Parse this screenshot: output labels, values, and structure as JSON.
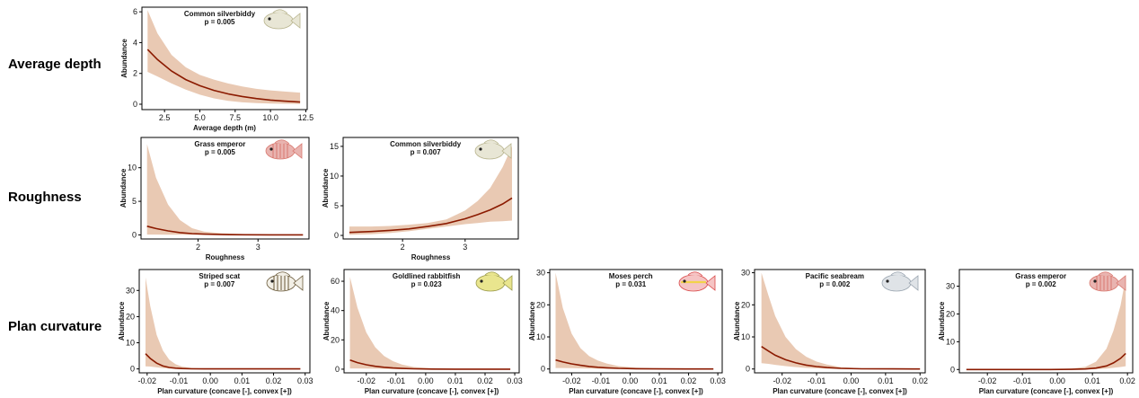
{
  "row_labels": [
    "Average depth",
    "Roughness",
    "Plan curvature"
  ],
  "colors": {
    "line": "#8b1a00",
    "ribbon": "#e9c9b3"
  },
  "chart_data": [
    {
      "type": "line",
      "row": 0,
      "species": "Common silverbiddy",
      "p_text": "p = 0.005",
      "xlabel": "Average depth (m)",
      "ylabel": "Abundance",
      "xlim": [
        0.9,
        12.6
      ],
      "ylim": [
        -0.35,
        6.3
      ],
      "xticks": [
        2.5,
        5.0,
        7.5,
        10.0,
        12.5
      ],
      "xtick_labels": [
        "2.5",
        "5.0",
        "7.5",
        "10.0",
        "12.5"
      ],
      "yticks": [
        0,
        2,
        4,
        6
      ],
      "ytick_labels": [
        "0",
        "2",
        "4",
        "6"
      ],
      "x": [
        1.3,
        2.0,
        3.0,
        4.0,
        5.0,
        6.0,
        7.0,
        8.0,
        9.0,
        10.0,
        11.0,
        12.1
      ],
      "y": [
        3.55,
        2.9,
        2.15,
        1.6,
        1.2,
        0.9,
        0.67,
        0.5,
        0.37,
        0.27,
        0.2,
        0.14
      ],
      "ci_low": [
        2.1,
        1.8,
        1.35,
        0.95,
        0.62,
        0.38,
        0.22,
        0.12,
        0.07,
        0.04,
        0.03,
        0.02
      ],
      "ci_high": [
        6.1,
        4.6,
        3.2,
        2.4,
        1.9,
        1.6,
        1.35,
        1.15,
        1.0,
        0.9,
        0.82,
        0.75
      ],
      "fish_icon": "silverbiddy-fish-icon"
    },
    {
      "type": "line",
      "row": 1,
      "species": "Grass emperor",
      "p_text": "p = 0.005",
      "xlabel": "Roughness",
      "ylabel": "Abundance",
      "xlim": [
        1.05,
        3.85
      ],
      "ylim": [
        -0.6,
        14.5
      ],
      "xticks": [
        2,
        3
      ],
      "xtick_labels": [
        "2",
        "3"
      ],
      "yticks": [
        0,
        5,
        10
      ],
      "ytick_labels": [
        "0",
        "5",
        "10"
      ],
      "x": [
        1.15,
        1.3,
        1.5,
        1.7,
        1.9,
        2.1,
        2.4,
        2.8,
        3.2,
        3.6,
        3.75
      ],
      "y": [
        1.3,
        0.95,
        0.6,
        0.35,
        0.2,
        0.12,
        0.06,
        0.03,
        0.02,
        0.01,
        0.01
      ],
      "ci_low": [
        0.05,
        0.05,
        0.04,
        0.03,
        0.02,
        0.01,
        0.0,
        0.0,
        0.0,
        0.0,
        0.0
      ],
      "ci_high": [
        13.5,
        8.5,
        4.5,
        2.2,
        1.0,
        0.5,
        0.25,
        0.12,
        0.08,
        0.05,
        0.04
      ],
      "fish_icon": "grass-emperor-fish-icon"
    },
    {
      "type": "line",
      "row": 1,
      "species": "Common silverbiddy",
      "p_text": "p = 0.007",
      "xlabel": "Roughness",
      "ylabel": "Abundance",
      "xlim": [
        1.05,
        3.85
      ],
      "ylim": [
        -0.6,
        16.5
      ],
      "xticks": [
        2,
        3
      ],
      "xtick_labels": [
        "2",
        "3"
      ],
      "yticks": [
        0,
        5,
        10,
        15
      ],
      "ytick_labels": [
        "0",
        "5",
        "10",
        "15"
      ],
      "x": [
        1.15,
        1.5,
        1.8,
        2.1,
        2.4,
        2.7,
        3.0,
        3.2,
        3.4,
        3.6,
        3.75
      ],
      "y": [
        0.5,
        0.65,
        0.85,
        1.1,
        1.5,
        2.0,
        2.8,
        3.5,
        4.3,
        5.3,
        6.3
      ],
      "ci_low": [
        0.1,
        0.2,
        0.4,
        0.7,
        1.1,
        1.5,
        1.9,
        2.1,
        2.3,
        2.4,
        2.5
      ],
      "ci_high": [
        1.5,
        1.5,
        1.6,
        1.8,
        2.1,
        2.7,
        4.2,
        5.8,
        8.0,
        11.5,
        15.0
      ],
      "fish_icon": "silverbiddy-fish-icon"
    },
    {
      "type": "line",
      "row": 2,
      "species": "Striped scat",
      "p_text": "p = 0.007",
      "xlabel": "Plan curvature (concave [-], convex [+])",
      "ylabel": "Abundance",
      "xlim": [
        -0.0225,
        0.0315
      ],
      "ylim": [
        -1.5,
        38
      ],
      "xticks": [
        -0.02,
        -0.01,
        0.0,
        0.01,
        0.02,
        0.03
      ],
      "xtick_labels": [
        "-0.02",
        "-0.01",
        "0.00",
        "0.01",
        "0.02",
        "0.03"
      ],
      "yticks": [
        0,
        10,
        20,
        30
      ],
      "ytick_labels": [
        "0",
        "10",
        "20",
        "30"
      ],
      "x": [
        -0.0205,
        -0.019,
        -0.017,
        -0.015,
        -0.013,
        -0.011,
        -0.009,
        -0.006,
        -0.002,
        0.005,
        0.015,
        0.0285
      ],
      "y": [
        5.8,
        4.0,
        2.2,
        1.1,
        0.55,
        0.28,
        0.14,
        0.06,
        0.02,
        0.01,
        0.0,
        0.0
      ],
      "ci_low": [
        1.0,
        0.9,
        0.6,
        0.3,
        0.12,
        0.05,
        0.02,
        0.0,
        0.0,
        0.0,
        0.0,
        0.0
      ],
      "ci_high": [
        35.0,
        24.0,
        13.0,
        7.0,
        3.5,
        1.8,
        0.9,
        0.4,
        0.15,
        0.05,
        0.02,
        0.0
      ],
      "fish_icon": "striped-scat-fish-icon"
    },
    {
      "type": "line",
      "row": 2,
      "species": "Goldlined rabbitfish",
      "p_text": "p = 0.023",
      "xlabel": "Plan curvature (concave [-], convex [+])",
      "ylabel": "Abundance",
      "xlim": [
        -0.0275,
        0.0315
      ],
      "ylim": [
        -2.5,
        68
      ],
      "xticks": [
        -0.02,
        -0.01,
        0.0,
        0.01,
        0.02,
        0.03
      ],
      "xtick_labels": [
        "-0.02",
        "-0.01",
        "0.00",
        "0.01",
        "0.02",
        "0.03"
      ],
      "yticks": [
        0,
        20,
        40,
        60
      ],
      "ytick_labels": [
        "0",
        "20",
        "40",
        "60"
      ],
      "x": [
        -0.0255,
        -0.023,
        -0.02,
        -0.017,
        -0.014,
        -0.011,
        -0.008,
        -0.004,
        0.002,
        0.01,
        0.02,
        0.0285
      ],
      "y": [
        6.2,
        4.5,
        3.0,
        2.0,
        1.3,
        0.8,
        0.5,
        0.25,
        0.1,
        0.04,
        0.01,
        0.0
      ],
      "ci_low": [
        0.5,
        0.5,
        0.4,
        0.3,
        0.2,
        0.12,
        0.07,
        0.03,
        0.01,
        0.0,
        0.0,
        0.0
      ],
      "ci_high": [
        63.0,
        42.0,
        25.0,
        15.0,
        9.0,
        5.5,
        3.2,
        1.5,
        0.6,
        0.2,
        0.06,
        0.02
      ],
      "fish_icon": "rabbitfish-fish-icon"
    },
    {
      "type": "line",
      "row": 2,
      "species": "Moses perch",
      "p_text": "p = 0.031",
      "xlabel": "Plan curvature (concave [-], convex [+])",
      "ylabel": "Abundance",
      "xlim": [
        -0.0275,
        0.0315
      ],
      "ylim": [
        -1.2,
        31
      ],
      "xticks": [
        -0.02,
        -0.01,
        0.0,
        0.01,
        0.02,
        0.03
      ],
      "xtick_labels": [
        "-0.02",
        "-0.01",
        "0.00",
        "0.01",
        "0.02",
        "0.03"
      ],
      "yticks": [
        0,
        10,
        20,
        30
      ],
      "ytick_labels": [
        "0",
        "10",
        "20",
        "30"
      ],
      "x": [
        -0.0255,
        -0.023,
        -0.02,
        -0.017,
        -0.014,
        -0.011,
        -0.008,
        -0.004,
        0.002,
        0.01,
        0.02,
        0.0285
      ],
      "y": [
        2.8,
        2.2,
        1.6,
        1.15,
        0.8,
        0.55,
        0.37,
        0.2,
        0.08,
        0.03,
        0.01,
        0.0
      ],
      "ci_low": [
        0.3,
        0.3,
        0.25,
        0.2,
        0.15,
        0.1,
        0.06,
        0.03,
        0.01,
        0.0,
        0.0,
        0.0
      ],
      "ci_high": [
        30.0,
        19.0,
        11.0,
        6.5,
        4.0,
        2.6,
        1.7,
        0.9,
        0.4,
        0.15,
        0.05,
        0.02
      ],
      "fish_icon": "moses-perch-fish-icon"
    },
    {
      "type": "line",
      "row": 2,
      "species": "Pacific seabream",
      "p_text": "p = 0.002",
      "xlabel": "Plan curvature (concave [-], convex [+])",
      "ylabel": "Abundance",
      "xlim": [
        -0.028,
        0.0215
      ],
      "ylim": [
        -1.2,
        31
      ],
      "xticks": [
        -0.02,
        -0.01,
        0.0,
        0.01,
        0.02
      ],
      "xtick_labels": [
        "-0.02",
        "-0.01",
        "0.00",
        "0.01",
        "0.02"
      ],
      "yticks": [
        0,
        10,
        20,
        30
      ],
      "ytick_labels": [
        "0",
        "10",
        "20",
        "30"
      ],
      "x": [
        -0.026,
        -0.024,
        -0.022,
        -0.019,
        -0.016,
        -0.013,
        -0.01,
        -0.007,
        -0.003,
        0.003,
        0.012,
        0.02
      ],
      "y": [
        7.0,
        5.6,
        4.3,
        2.9,
        1.9,
        1.2,
        0.75,
        0.45,
        0.2,
        0.07,
        0.02,
        0.0
      ],
      "ci_low": [
        1.8,
        1.6,
        1.3,
        0.9,
        0.6,
        0.35,
        0.2,
        0.1,
        0.04,
        0.01,
        0.0,
        0.0
      ],
      "ci_high": [
        30.0,
        23.0,
        16.5,
        10.0,
        6.2,
        3.8,
        2.3,
        1.4,
        0.6,
        0.2,
        0.05,
        0.01
      ],
      "fish_icon": "seabream-fish-icon"
    },
    {
      "type": "line",
      "row": 2,
      "species": "Grass emperor",
      "p_text": "p = 0.002",
      "xlabel": "Plan curvature (concave [-], convex [+])",
      "ylabel": "Abundance",
      "xlim": [
        -0.028,
        0.0215
      ],
      "ylim": [
        -1.2,
        36
      ],
      "xticks": [
        -0.02,
        -0.01,
        0.0,
        0.01,
        0.02
      ],
      "xtick_labels": [
        "-0.02",
        "-0.01",
        "0.00",
        "0.01",
        "0.02"
      ],
      "yticks": [
        0,
        10,
        20,
        30
      ],
      "ytick_labels": [
        "0",
        "10",
        "20",
        "30"
      ],
      "x": [
        -0.026,
        -0.02,
        -0.014,
        -0.008,
        -0.002,
        0.004,
        0.008,
        0.011,
        0.014,
        0.016,
        0.018,
        0.0195
      ],
      "y": [
        0.0,
        0.0,
        0.0,
        0.0,
        0.01,
        0.05,
        0.18,
        0.5,
        1.3,
        2.4,
        4.0,
        5.8
      ],
      "ci_low": [
        0.0,
        0.0,
        0.0,
        0.0,
        0.0,
        0.01,
        0.04,
        0.12,
        0.35,
        0.6,
        0.9,
        1.2
      ],
      "ci_high": [
        0.0,
        0.0,
        0.01,
        0.03,
        0.1,
        0.35,
        1.0,
        2.8,
        7.5,
        14.0,
        23.0,
        33.0
      ],
      "fish_icon": "grass-emperor-fish-icon"
    }
  ]
}
